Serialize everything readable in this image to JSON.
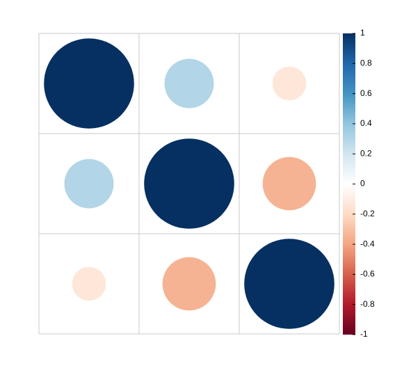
{
  "chart_data": {
    "type": "corrplot",
    "matrix": [
      [
        1,
        0.3,
        -0.14
      ],
      [
        0.3,
        1,
        -0.35
      ],
      [
        -0.14,
        -0.35,
        1
      ]
    ],
    "colors": [
      "#67001F",
      "#B2182B",
      "#D6604D",
      "#F4A582",
      "#FDDBC7",
      "#FFFFFF",
      "#D1E5F0",
      "#92C5DE",
      "#4393C3",
      "#2166AC",
      "#053061"
    ],
    "ylim": [
      -1,
      1
    ],
    "yticks": [
      -1,
      -0.8,
      -0.6,
      -0.4,
      -0.2,
      0,
      0.2,
      0.4,
      0.6,
      0.8,
      1
    ]
  }
}
